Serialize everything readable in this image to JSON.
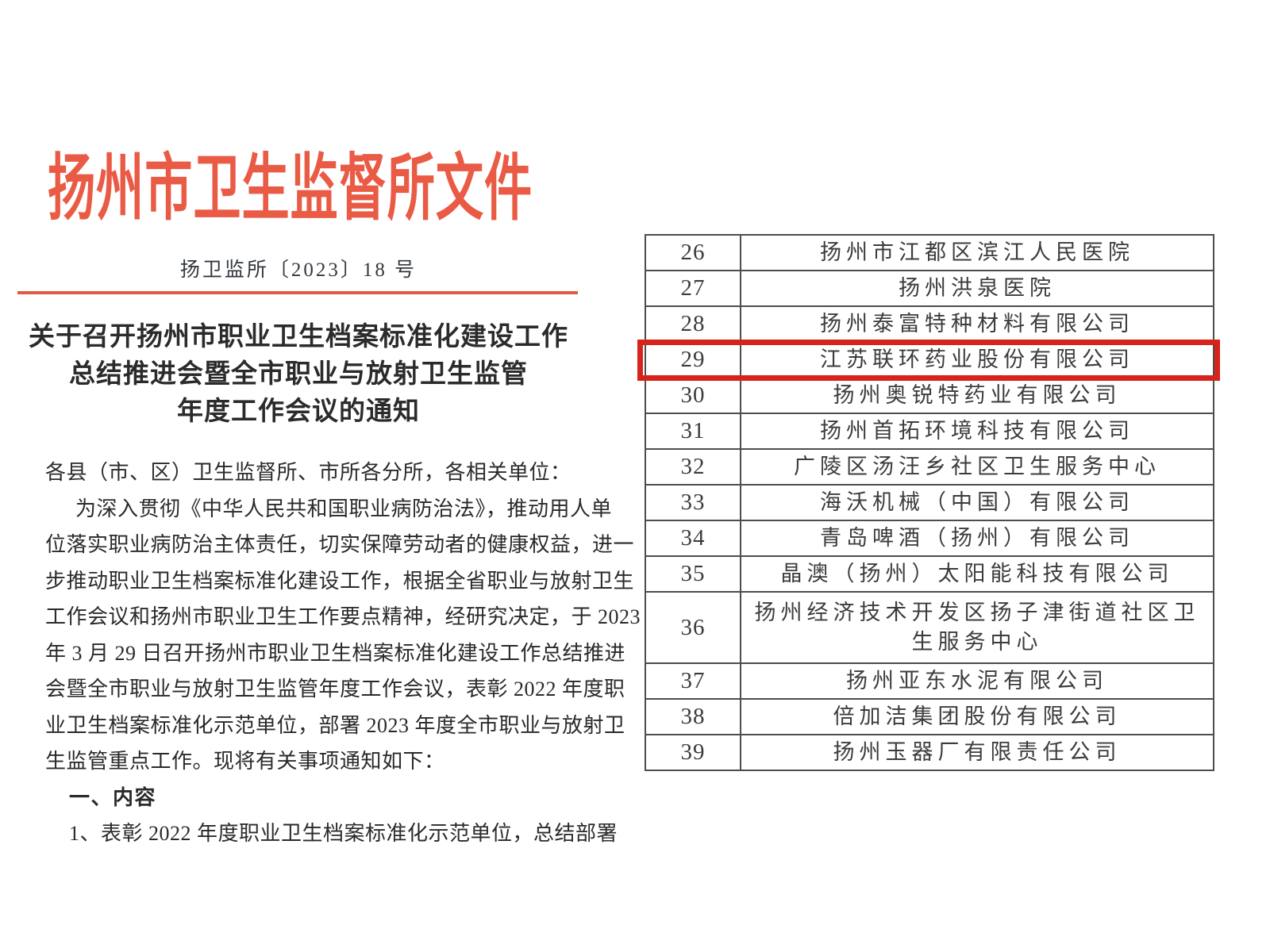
{
  "doc": {
    "header_title": "扬州市卫生监督所文件",
    "doc_number": "扬卫监所〔2023〕18 号",
    "title_lines": [
      "关于召开扬州市职业卫生档案标准化建设工作",
      "总结推进会暨全市职业与放射卫生监管",
      "年度工作会议的通知"
    ],
    "body_lines": [
      "各县（市、区）卫生监督所、市所各分所，各相关单位：",
      "为深入贯彻《中华人民共和国职业病防治法》，推动用人单",
      "位落实职业病防治主体责任，切实保障劳动者的健康权益，进一",
      "步推动职业卫生档案标准化建设工作，根据全省职业与放射卫生",
      "工作会议和扬州市职业卫生工作要点精神，经研究决定，于 2023",
      "年 3 月 29 日召开扬州市职业卫生档案标准化建设工作总结推进",
      "会暨全市职业与放射卫生监管年度工作会议，表彰 2022 年度职",
      "业卫生档案标准化示范单位，部署 2023 年度全市职业与放射卫",
      "生监管重点工作。现将有关事项通知如下：",
      "一、内容",
      "1、表彰 2022 年度职业卫生档案标准化示范单位，总结部署"
    ],
    "colors": {
      "header_red": "#ea5b46",
      "rule_red": "#e05a43",
      "highlight_red": "#d6231c",
      "text": "#2a2a2a",
      "table_border": "#4d4d4d"
    }
  },
  "table": {
    "highlight_row": "29",
    "rows": [
      {
        "num": "26",
        "name": "扬州市江都区滨江人民医院"
      },
      {
        "num": "27",
        "name": "扬州洪泉医院"
      },
      {
        "num": "28",
        "name": "扬州泰富特种材料有限公司"
      },
      {
        "num": "29",
        "name": "江苏联环药业股份有限公司"
      },
      {
        "num": "30",
        "name": "扬州奥锐特药业有限公司"
      },
      {
        "num": "31",
        "name": "扬州首拓环境科技有限公司"
      },
      {
        "num": "32",
        "name": "广陵区汤汪乡社区卫生服务中心"
      },
      {
        "num": "33",
        "name": "海沃机械（中国）有限公司"
      },
      {
        "num": "34",
        "name": "青岛啤酒（扬州）有限公司"
      },
      {
        "num": "35",
        "name": "晶澳（扬州）太阳能科技有限公司"
      },
      {
        "num": "36",
        "name": "扬州经济技术开发区扬子津街道社区卫生服务中心"
      },
      {
        "num": "37",
        "name": "扬州亚东水泥有限公司"
      },
      {
        "num": "38",
        "name": "倍加洁集团股份有限公司"
      },
      {
        "num": "39",
        "name": "扬州玉器厂有限责任公司"
      }
    ]
  }
}
